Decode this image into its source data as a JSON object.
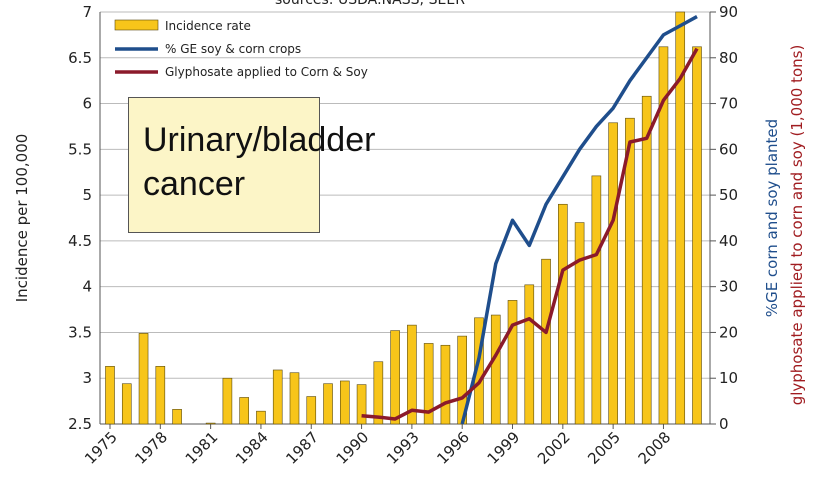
{
  "chart_data": {
    "type": "bar",
    "subtitle": "sources: USDA:NASS; SEER",
    "categories": [
      "1975",
      null,
      null,
      "1978",
      null,
      null,
      "1981",
      null,
      null,
      "1984",
      null,
      null,
      "1987",
      null,
      null,
      "1990",
      null,
      null,
      "1993",
      null,
      null,
      "1996",
      null,
      null,
      "1999",
      null,
      null,
      "2002",
      null,
      null,
      "2005",
      null,
      null,
      "2008",
      null,
      null
    ],
    "series": [
      {
        "name": "Incidence rate",
        "type": "bar",
        "color": "#f7c51a",
        "values": [
          3.13,
          2.94,
          3.49,
          3.13,
          2.66,
          2.5,
          2.51,
          3.0,
          2.79,
          2.64,
          3.09,
          3.06,
          2.8,
          2.94,
          2.97,
          2.93,
          3.18,
          3.52,
          3.58,
          3.38,
          3.36,
          3.46,
          3.66,
          3.69,
          3.85,
          4.02,
          4.3,
          4.9,
          4.7,
          5.21,
          5.79,
          5.84,
          6.08,
          6.62,
          7.0,
          6.62
        ]
      },
      {
        "name": "% GE soy & corn crops",
        "type": "line",
        "axis": "y2",
        "color": "#1f4e8c",
        "values": [
          null,
          null,
          null,
          null,
          null,
          null,
          null,
          null,
          null,
          null,
          null,
          null,
          null,
          null,
          null,
          null,
          null,
          null,
          null,
          null,
          null,
          0,
          14.4,
          35,
          44.5,
          39,
          48,
          54,
          60,
          65,
          69,
          75,
          80,
          85,
          87,
          89
        ]
      },
      {
        "name": "Glyphosate applied to Corn & Soy",
        "type": "line",
        "axis": "y2",
        "color": "#8b1a2b",
        "values": [
          null,
          null,
          null,
          null,
          null,
          null,
          null,
          null,
          null,
          null,
          null,
          null,
          null,
          null,
          null,
          1.8,
          1.5,
          1.1,
          3,
          2.6,
          4.6,
          5.7,
          9,
          15,
          21.6,
          23,
          20,
          33.6,
          35.8,
          37,
          44.5,
          61.6,
          62.4,
          70.7,
          75.5,
          82
        ]
      }
    ],
    "ylabel": "Incidence per 100,000",
    "y2label": "%GE corn and soy planted",
    "y2label_2": "glyphosate applied to corn and soy (1,000 tons)",
    "y2label_color": "#1f4e8c",
    "y2label_2_color": "#a01c20",
    "ylim": [
      2.5,
      7
    ],
    "yticks": [
      2.5,
      3,
      3.5,
      4,
      4.5,
      5,
      5.5,
      6,
      6.5,
      7
    ],
    "y2lim": [
      0,
      90
    ],
    "y2ticks": [
      0,
      10,
      20,
      30,
      40,
      50,
      60,
      70,
      80,
      90
    ],
    "grid": true,
    "legend": "top-left",
    "annotation": "Urinary/bladder cancer"
  }
}
